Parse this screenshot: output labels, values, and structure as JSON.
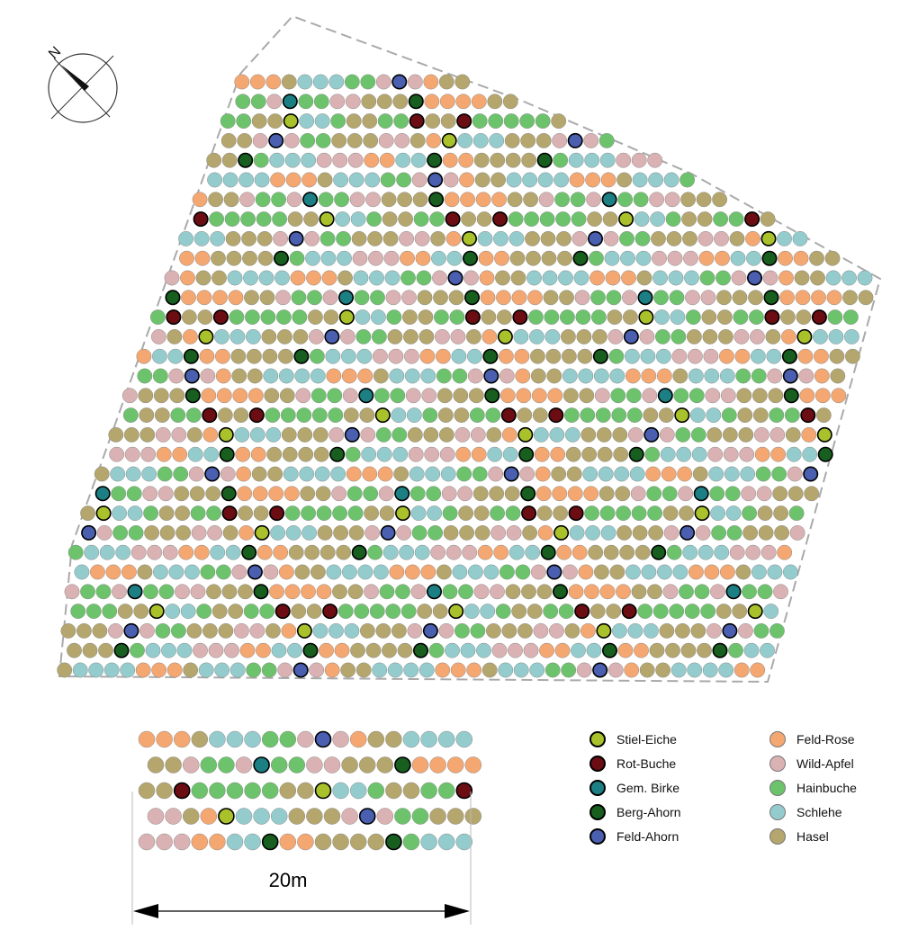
{
  "scale": {
    "label": "20m"
  },
  "compass": {
    "label": "N"
  },
  "legend": {
    "featured": [
      {
        "key": "SE",
        "label": "Stiel-Eiche",
        "color": "#a9c12a"
      },
      {
        "key": "RB",
        "label": "Rot-Buche",
        "color": "#6b0d12"
      },
      {
        "key": "GB",
        "label": "Gem. Birke",
        "color": "#1c7f83"
      },
      {
        "key": "BA",
        "label": "Berg-Ahorn",
        "color": "#175e1f"
      },
      {
        "key": "FA",
        "label": "Feld-Ahorn",
        "color": "#4a5fb0"
      }
    ],
    "filler": [
      {
        "key": "FR",
        "label": "Feld-Rose",
        "color": "#f5a771"
      },
      {
        "key": "WA",
        "label": "Wild-Apfel",
        "color": "#dbb2b3"
      },
      {
        "key": "HB",
        "label": "Hainbuche",
        "color": "#6cc36c"
      },
      {
        "key": "SL",
        "label": "Schlehe",
        "color": "#94cccd"
      },
      {
        "key": "HS",
        "label": "Hasel",
        "color": "#b4a66d"
      }
    ]
  },
  "module": {
    "rows": [
      [
        "FR",
        "FR",
        "FR",
        "HS",
        "SL",
        "SL",
        "SL",
        "HB",
        "HB",
        "WA",
        "FA",
        "WA",
        "FR",
        "HS",
        "HS",
        "SL",
        "SL",
        "SL",
        "SL"
      ],
      [
        "HS",
        "HS",
        "WA",
        "HB",
        "HB",
        "WA",
        "GB",
        "HB",
        "HB",
        "WA",
        "WA",
        "HS",
        "HS",
        "HS",
        "BA",
        "FR",
        "FR",
        "FR",
        "FR"
      ],
      [
        "HS",
        "HS",
        "RB",
        "HB",
        "HB",
        "HB",
        "HB",
        "HB",
        "HS",
        "HS",
        "SE",
        "SL",
        "SL",
        "HB",
        "HS",
        "HS",
        "HB",
        "HB",
        "RB"
      ],
      [
        "WA",
        "WA",
        "HS",
        "FR",
        "SE",
        "SL",
        "SL",
        "SL",
        "HS",
        "HS",
        "HS",
        "WA",
        "FA",
        "WA",
        "HB",
        "HB",
        "HS",
        "HS",
        "HS"
      ],
      [
        "WA",
        "WA",
        "WA",
        "FR",
        "FR",
        "SL",
        "SL",
        "BA",
        "FR",
        "FR",
        "HS",
        "HS",
        "HS",
        "HS",
        "BA",
        "HB",
        "SL",
        "SL",
        "SL"
      ]
    ]
  }
}
